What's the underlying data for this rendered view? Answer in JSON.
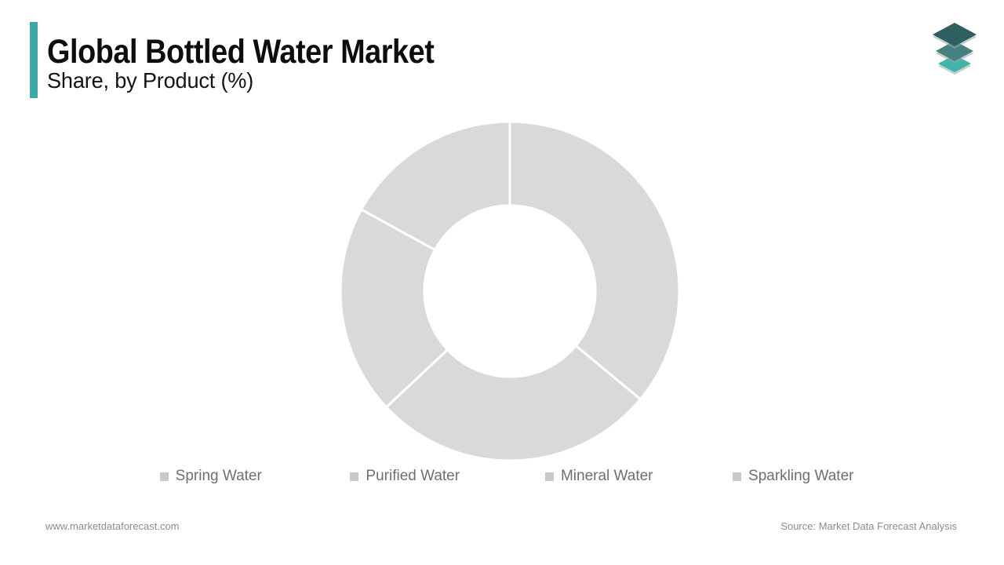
{
  "header": {
    "title": "Global Bottled Water Market",
    "subtitle": "Share, by Product (%)",
    "accent_color": "#3BA9A4"
  },
  "logo": {
    "name": "market-data-forecast-logo",
    "colors": [
      "#2F5F5E",
      "#47817F",
      "#41B2AC"
    ]
  },
  "chart_data": {
    "type": "pie",
    "variant": "donut",
    "title": "Global Bottled Water Market Share, by Product (%)",
    "categories": [
      "Spring Water",
      "Purified Water",
      "Mineral Water",
      "Sparkling Water"
    ],
    "values": [
      36,
      27,
      20,
      17
    ],
    "unit": "%",
    "start_angle_deg": 0,
    "direction": "clockwise",
    "inner_radius_ratio": 0.505,
    "segment_color": "#D9D9D9",
    "border_color": "#FFFFFF",
    "border_width": 3,
    "data_labels": false,
    "legend_position": "bottom"
  },
  "legend": {
    "marker_color": "#C9C9C9",
    "text_color": "#6F6F6F"
  },
  "footer": {
    "website": "www.marketdataforecast.com",
    "source": "Source: Market Data Forecast Analysis"
  }
}
